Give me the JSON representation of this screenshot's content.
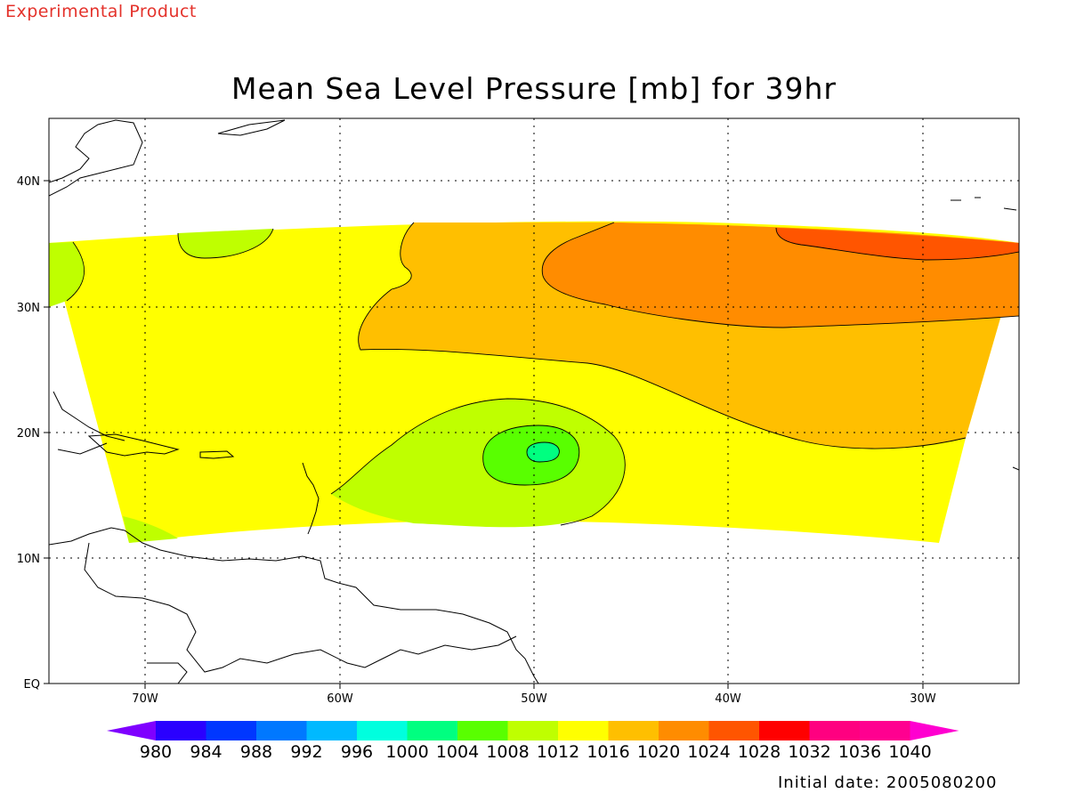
{
  "header": {
    "experimental_label": "Experimental Product"
  },
  "footer": {
    "initial_date": "Initial date: 2005080200"
  },
  "map": {
    "title": "Mean Sea Level Pressure [mb] for 39hr",
    "lon_labels": [
      "70W",
      "60W",
      "50W",
      "40W",
      "30W"
    ],
    "lat_labels": [
      "40N",
      "30N",
      "20N",
      "10N",
      "EQ"
    ],
    "colors": {
      "c1008": "#bfff00",
      "c1012": "#ffff00",
      "c1016": "#ffbf00",
      "c1020": "#ff8c00",
      "c1024": "#ff5500",
      "c1004": "#59ff00",
      "c1000": "#00ff80"
    }
  },
  "colorbar": {
    "labels": [
      "980",
      "984",
      "988",
      "992",
      "996",
      "1000",
      "1004",
      "1008",
      "1012",
      "1016",
      "1020",
      "1024",
      "1028",
      "1032",
      "1036",
      "1040"
    ],
    "colors": [
      "#7f00ff",
      "#2a00ff",
      "#0037ff",
      "#0078ff",
      "#00b9ff",
      "#00ffde",
      "#00ff80",
      "#59ff00",
      "#bfff00",
      "#ffff00",
      "#ffbf00",
      "#ff8c00",
      "#ff5500",
      "#ff0000",
      "#ff0080",
      "#ff0090",
      "#ff00d0"
    ]
  }
}
